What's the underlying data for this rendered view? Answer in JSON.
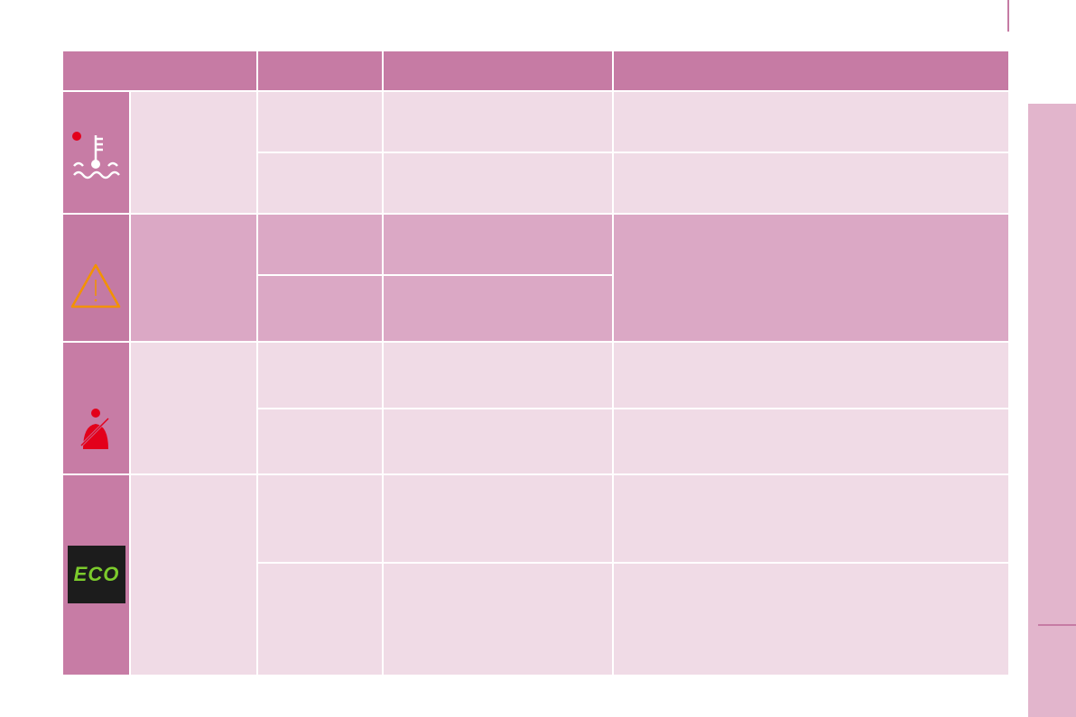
{
  "eco_icon": {
    "label": "ECO"
  }
}
